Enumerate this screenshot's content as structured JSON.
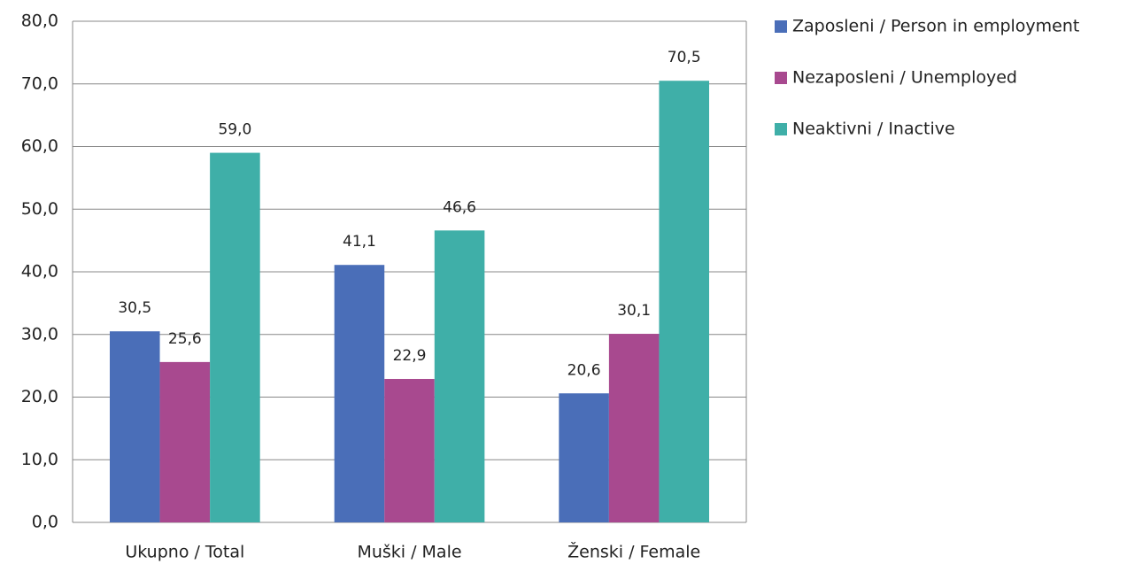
{
  "chart_data": {
    "type": "bar",
    "categories": [
      "Ukupno / Total",
      "Muški / Male",
      "Ženski / Female"
    ],
    "series": [
      {
        "name": "Zaposleni / Person in employment",
        "color": "#4a6eb8",
        "values": [
          30.5,
          41.1,
          20.6
        ],
        "value_labels": [
          "30,5",
          "41,1",
          "20,6"
        ]
      },
      {
        "name": "Nezaposleni / Unemployed",
        "color": "#a8498f",
        "values": [
          25.6,
          22.9,
          30.1
        ],
        "value_labels": [
          "25,6",
          "22,9",
          "30,1"
        ]
      },
      {
        "name": "Neaktivni / Inactive",
        "color": "#3fafa8",
        "values": [
          59.0,
          46.6,
          70.5
        ],
        "value_labels": [
          "59,0",
          "46,6",
          "70,5"
        ]
      }
    ],
    "ylim": [
      0,
      80
    ],
    "yticks": [
      {
        "value": 0,
        "label": "0,0"
      },
      {
        "value": 10,
        "label": "10,0"
      },
      {
        "value": 20,
        "label": "20,0"
      },
      {
        "value": 30,
        "label": "30,0"
      },
      {
        "value": 40,
        "label": "40,0"
      },
      {
        "value": 50,
        "label": "50,0"
      },
      {
        "value": 60,
        "label": "60,0"
      },
      {
        "value": 70,
        "label": "70,0"
      },
      {
        "value": 80,
        "label": "80,0"
      }
    ],
    "grid": true,
    "legend": "right"
  }
}
